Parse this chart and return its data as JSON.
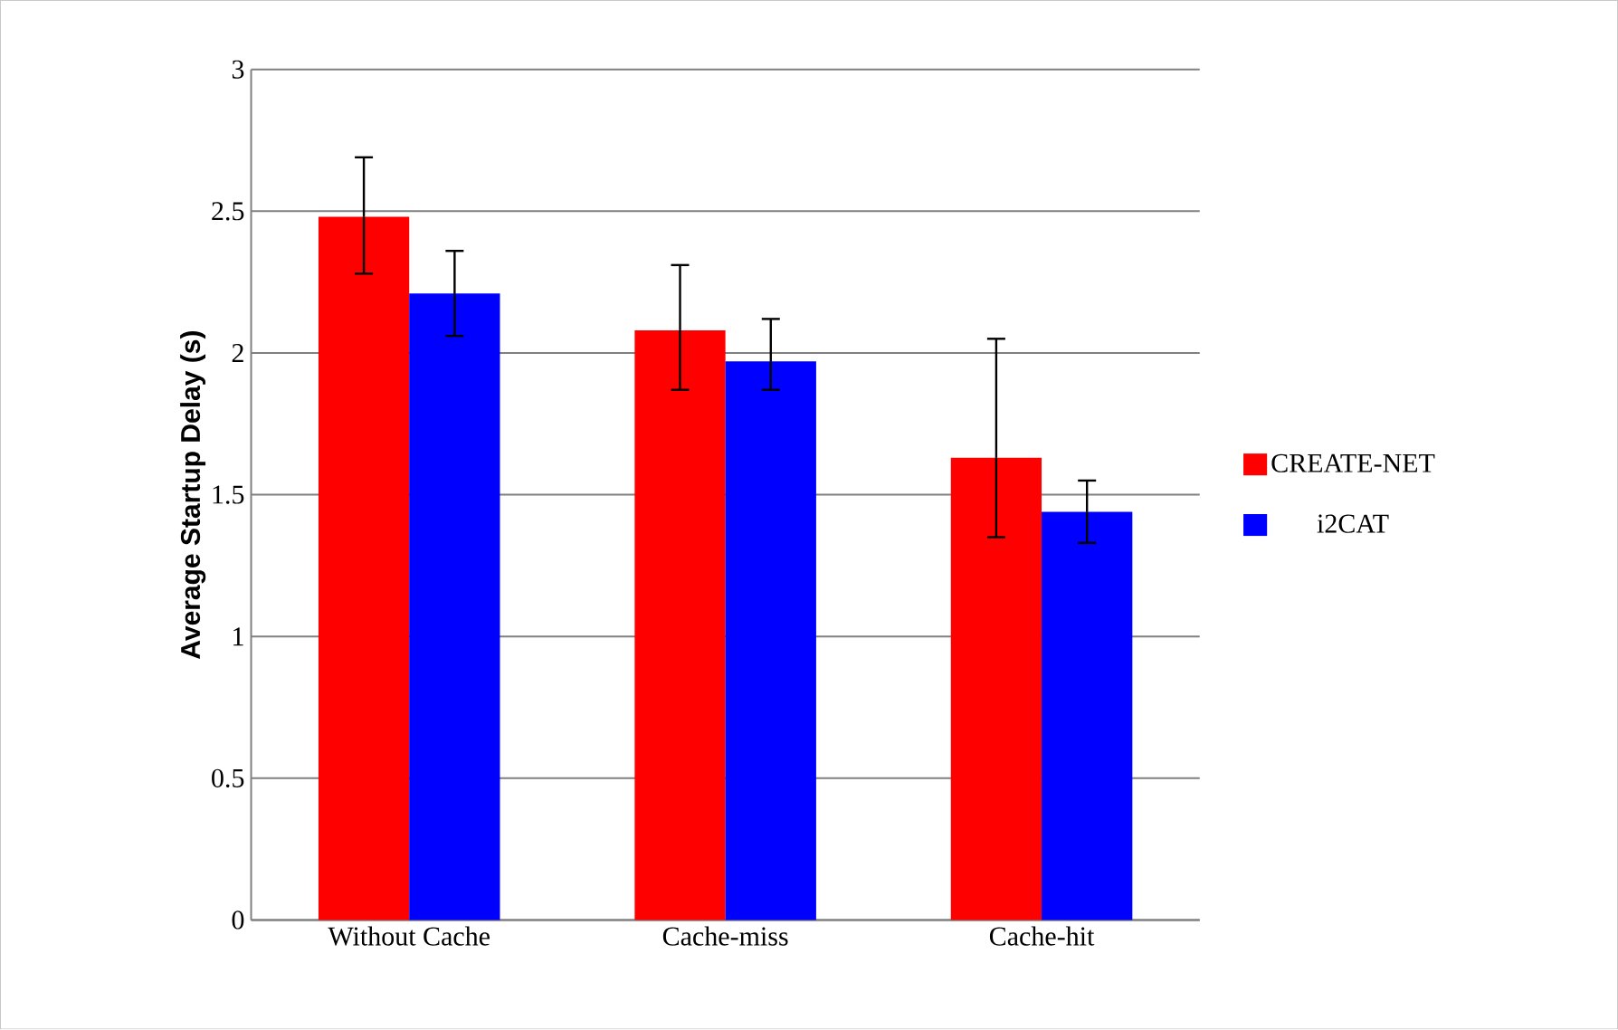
{
  "chart_data": {
    "type": "bar",
    "ylabel": "Average Startup Delay (s)",
    "categories": [
      "Without Cache",
      "Cache-miss",
      "Cache-hit"
    ],
    "series": [
      {
        "name": "CREATE-NET",
        "color": "#ff0000",
        "values": [
          2.48,
          2.08,
          1.63
        ],
        "errors": [
          [
            2.28,
            2.69
          ],
          [
            1.87,
            2.31
          ],
          [
            1.35,
            2.05
          ]
        ]
      },
      {
        "name": "i2CAT",
        "color": "#0000ff",
        "values": [
          2.21,
          1.97,
          1.44
        ],
        "errors": [
          [
            2.06,
            2.36
          ],
          [
            1.87,
            2.12
          ],
          [
            1.33,
            1.55
          ]
        ]
      }
    ],
    "ylim": [
      0,
      3
    ],
    "yticks": [
      0,
      0.5,
      1,
      1.5,
      2,
      2.5,
      3
    ],
    "grid": "y",
    "legend": "right"
  }
}
